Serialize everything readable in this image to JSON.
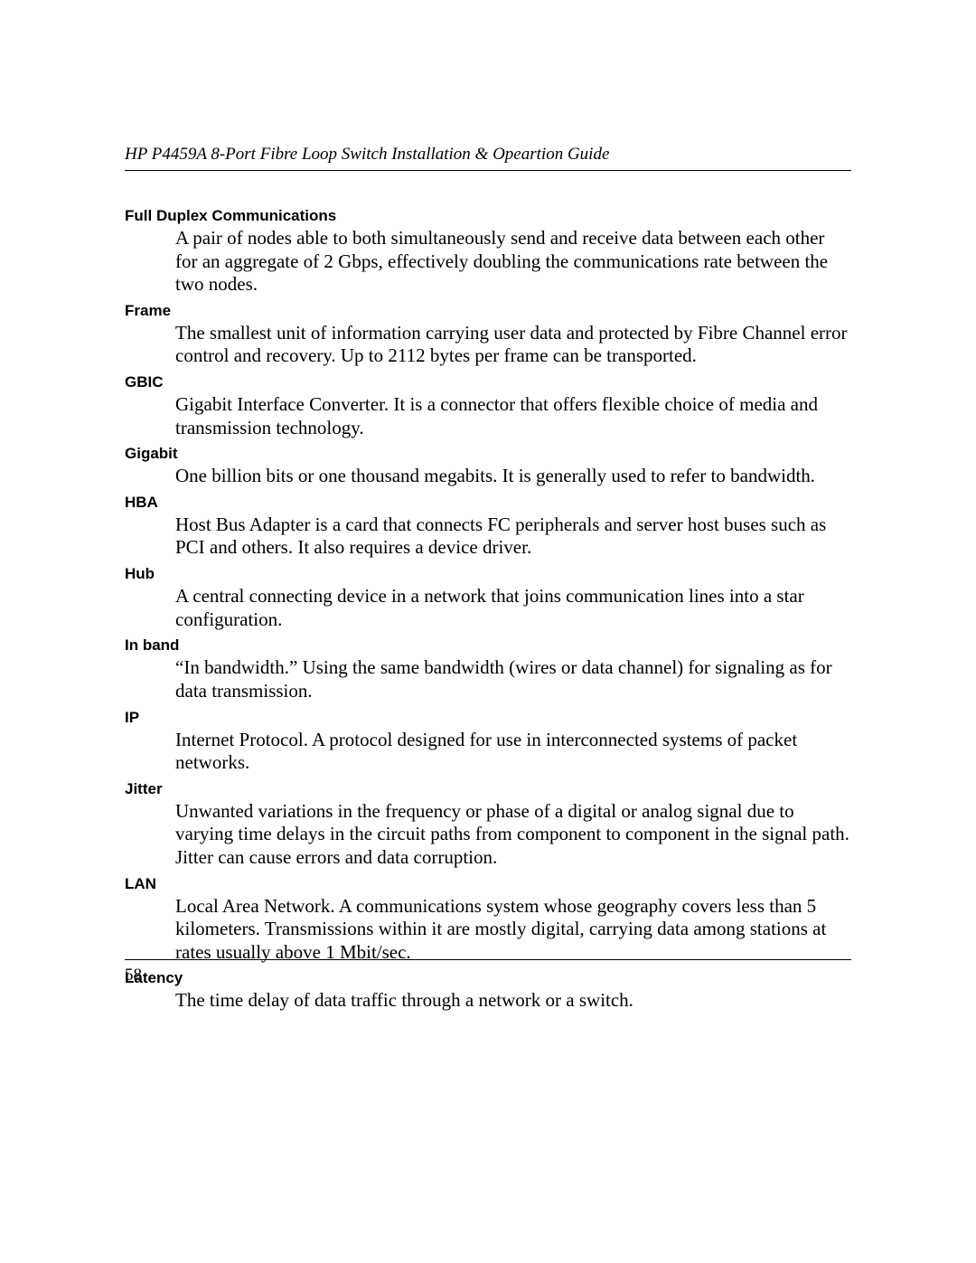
{
  "header": {
    "title": "HP P4459A 8-Port Fibre Loop Switch Installation & Opeartion Guide"
  },
  "glossary": [
    {
      "term": "Full Duplex Communications",
      "definition": "A pair of nodes able to both simultaneously send and receive data between each other for an aggregate of 2 Gbps, effectively doubling the communications rate between the two nodes."
    },
    {
      "term": "Frame",
      "definition": "The smallest unit of information carrying user data and protected by Fibre Channel error control and recovery. Up to 2112 bytes per frame can be transported."
    },
    {
      "term": "GBIC",
      "definition": "Gigabit Interface Converter. It is a connector that offers flexible choice of media and transmission technology."
    },
    {
      "term": "Gigabit",
      "definition": "One billion bits or one thousand megabits. It is generally used to refer to bandwidth."
    },
    {
      "term": "HBA",
      "definition": "Host Bus Adapter is a card that connects FC peripherals and server host buses such as PCI and others. It also requires a device driver."
    },
    {
      "term": "Hub",
      "definition": "A central connecting device in a network that joins communication lines into a star configuration."
    },
    {
      "term": "In band",
      "definition": "“In bandwidth.” Using the same bandwidth (wires or data channel) for signaling as for data transmission."
    },
    {
      "term": "IP",
      "definition": "Internet Protocol. A protocol designed for use in interconnected systems of packet networks."
    },
    {
      "term": "Jitter",
      "definition": "Unwanted variations in the frequency or phase of a digital or analog signal due to varying time delays in the circuit paths from component to component in the signal path. Jitter can cause errors and data corruption."
    },
    {
      "term": "LAN",
      "definition": "Local Area Network. A communications system whose geography covers less than 5 kilometers. Transmissions within it are mostly digital, carrying data among stations at rates usually above 1 Mbit/sec."
    },
    {
      "term": "Latency",
      "definition": "The time delay of data traffic through a network or a switch."
    }
  ],
  "footer": {
    "page_number": "58"
  }
}
